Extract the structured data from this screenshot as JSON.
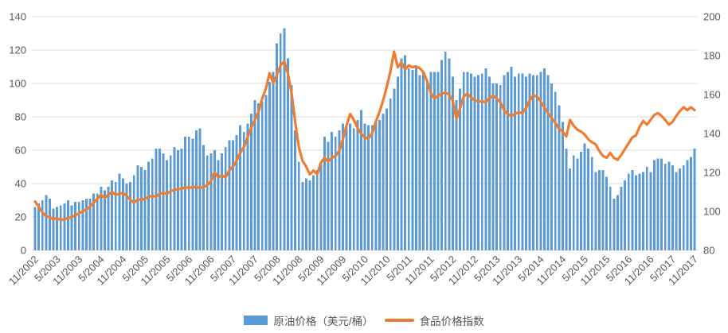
{
  "colors": {
    "bar": "#5b9bd5",
    "line": "#ed7d31",
    "grid": "#d9d9d9",
    "axis_text": "#595959",
    "background": "#ffffff"
  },
  "legend": {
    "oil_label": "原油价格（美元/桶）",
    "food_label": "食品价格指数"
  },
  "chart_data": {
    "type": "bar",
    "subtype": "combo-bar-line",
    "title": "",
    "grid": true,
    "legend_position": "bottom",
    "x_start": "11/2002",
    "x_end": "11/2017",
    "x_frequency": "monthly",
    "x_tick_labels": [
      "11/2002",
      "5/2003",
      "11/2003",
      "5/2004",
      "11/2004",
      "5/2005",
      "11/2005",
      "5/2006",
      "11/2006",
      "5/2007",
      "11/2007",
      "5/2008",
      "11/2008",
      "5/2009",
      "11/2009",
      "5/2010",
      "11/2010",
      "5/2011",
      "11/2011",
      "5/2012",
      "11/2012",
      "5/2013",
      "11/2013",
      "5/2014",
      "11/2014",
      "5/2015",
      "11/2015",
      "5/2016",
      "11/2016",
      "5/2017",
      "11/2017"
    ],
    "left_axis": {
      "min": 0,
      "max": 140,
      "step": 20,
      "ticks": [
        0,
        20,
        40,
        60,
        80,
        100,
        120,
        140
      ]
    },
    "right_axis": {
      "min": 80,
      "max": 200,
      "step": 20,
      "ticks": [
        80,
        100,
        120,
        140,
        160,
        180,
        200
      ]
    },
    "series": [
      {
        "name": "原油价格（美元/桶）",
        "type": "bar",
        "axis": "left",
        "color": "#5b9bd5",
        "values": [
          26,
          28,
          30,
          33,
          31,
          25,
          26,
          27,
          28,
          30,
          27,
          29,
          29,
          30,
          31,
          31,
          34,
          34,
          38,
          36,
          38,
          42,
          41,
          46,
          43,
          40,
          41,
          45,
          51,
          50,
          48,
          53,
          55,
          61,
          61,
          58,
          54,
          57,
          62,
          60,
          61,
          68,
          68,
          67,
          72,
          73,
          63,
          57,
          58,
          60,
          54,
          58,
          62,
          66,
          66,
          69,
          75,
          71,
          76,
          82,
          90,
          88,
          89,
          93,
          101,
          107,
          124,
          130,
          133,
          115,
          99,
          72,
          53,
          41,
          43,
          42,
          45,
          48,
          53,
          68,
          65,
          71,
          68,
          72,
          76,
          74,
          76,
          73,
          78,
          84,
          76,
          75,
          75,
          77,
          78,
          82,
          85,
          91,
          97,
          104,
          115,
          117,
          109,
          108,
          110,
          105,
          107,
          102,
          107,
          107,
          107,
          114,
          119,
          115,
          104,
          90,
          97,
          107,
          107,
          106,
          104,
          105,
          106,
          109,
          104,
          100,
          100,
          99,
          105,
          107,
          110,
          104,
          106,
          106,
          104,
          106,
          105,
          105,
          107,
          109,
          105,
          100,
          95,
          87,
          77,
          61,
          49,
          57,
          55,
          59,
          64,
          61,
          56,
          47,
          48,
          48,
          44,
          38,
          31,
          33,
          38,
          42,
          46,
          48,
          45,
          46,
          47,
          50,
          47,
          54,
          55,
          55,
          52,
          53,
          51,
          47,
          49,
          51,
          54,
          56,
          61
        ]
      },
      {
        "name": "食品价格指数",
        "type": "line",
        "axis": "right",
        "color": "#ed7d31",
        "values": [
          105,
          102.5,
          99.5,
          97.5,
          97,
          96,
          96.5,
          95.5,
          96,
          96.5,
          97,
          98,
          99,
          100,
          101,
          102.5,
          104.5,
          106.5,
          108.5,
          107,
          108.5,
          110,
          108.5,
          109,
          109.5,
          108,
          106,
          104.5,
          106,
          106,
          106.5,
          107.5,
          108,
          107.5,
          109,
          109.5,
          109,
          110.5,
          111,
          111.5,
          111.5,
          112.5,
          112,
          112.5,
          112.5,
          112,
          112.5,
          113.5,
          115.5,
          120,
          117.5,
          118.5,
          117.5,
          121,
          123,
          126,
          130,
          133,
          138,
          143,
          147,
          151,
          158,
          163,
          171,
          166,
          170,
          175,
          177,
          171,
          161,
          146,
          133,
          126,
          123,
          119,
          121,
          119,
          125,
          127.5,
          125.5,
          127.5,
          128.5,
          131,
          137,
          144,
          150,
          147,
          143,
          140,
          138,
          137.5,
          140,
          146,
          151,
          157,
          164,
          172,
          182,
          174,
          176.5,
          173,
          175,
          174,
          174.5,
          173.5,
          171.5,
          167,
          161,
          158,
          159.5,
          160.5,
          161,
          160,
          157,
          147.5,
          153,
          159,
          160.5,
          158.5,
          157,
          156.5,
          156.5,
          156,
          158,
          159.5,
          158,
          156,
          152,
          150,
          149,
          150,
          151,
          150.5,
          153,
          157,
          159.5,
          159,
          156.5,
          153.5,
          150.5,
          148,
          145.5,
          142.5,
          141,
          138.5,
          147,
          144,
          142,
          141,
          139.5,
          137,
          135.5,
          134.5,
          131,
          128.5,
          127.5,
          130,
          127.5,
          126.5,
          129,
          132,
          135,
          138,
          139,
          143.5,
          146.5,
          144.5,
          147,
          149.5,
          150.5,
          149,
          147,
          144.5,
          146,
          149,
          151.5,
          153.5,
          152,
          153.5,
          152
        ]
      }
    ]
  }
}
